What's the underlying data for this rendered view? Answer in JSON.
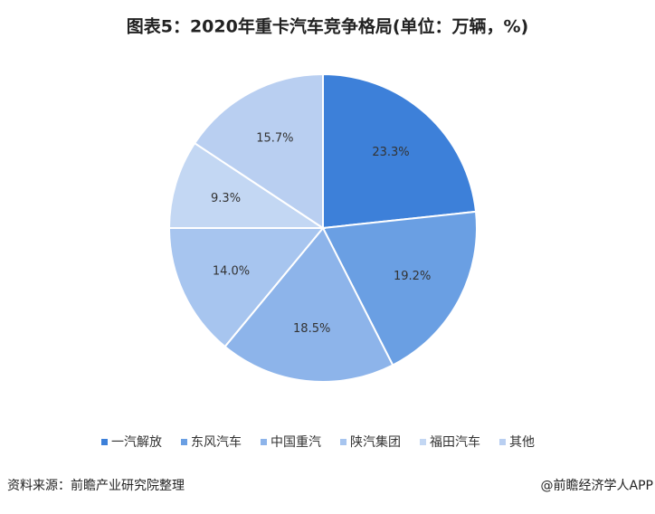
{
  "chart_data": {
    "type": "pie",
    "title": "图表5：2020年重卡汽车竞争格局(单位：万辆，%)",
    "categories": [
      "一汽解放",
      "东风汽车",
      "中国重汽",
      "陕汽集团",
      "福田汽车",
      "其他"
    ],
    "values": [
      23.3,
      19.2,
      18.5,
      14.0,
      9.3,
      15.7
    ],
    "value_labels": [
      "23.3%",
      "19.2%",
      "18.5%",
      "14.0%",
      "9.3%",
      "15.7%"
    ],
    "colors": [
      "#3d80d9",
      "#6a9fe3",
      "#8db4ea",
      "#a7c5ef",
      "#c3d7f3",
      "#b9cff1"
    ],
    "source": "资料来源：前瞻产业研究院整理",
    "credit": "@前瞻经济学人APP"
  }
}
